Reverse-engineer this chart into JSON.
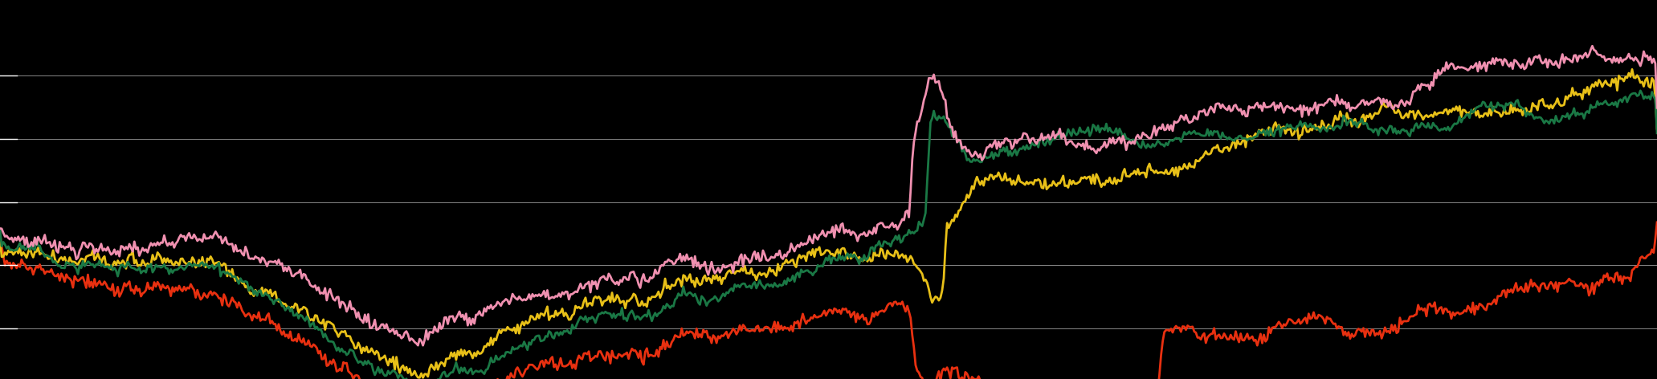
{
  "background_color": "#000000",
  "grid_color": "#888888",
  "line_colors": [
    "#F090B0",
    "#1A7845",
    "#E8C018",
    "#E83010"
  ],
  "line_width": 2.0,
  "n_points": 1000,
  "ylim": [
    -2.8,
    3.2
  ],
  "xlim": [
    0,
    999
  ],
  "grid_lines_y": [
    -2.0,
    -1.0,
    0.0,
    1.0,
    2.0
  ]
}
